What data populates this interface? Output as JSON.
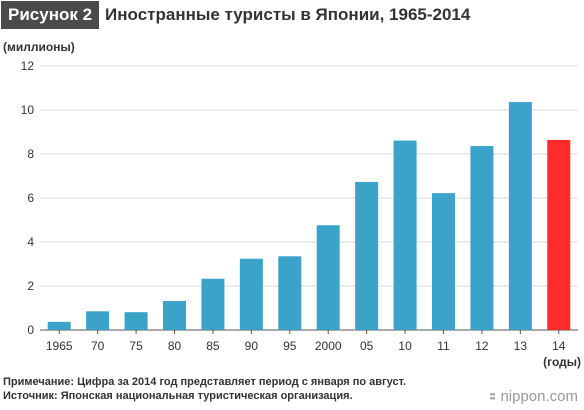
{
  "header": {
    "figure_label": "Рисунок 2",
    "title": "Иностранные туристы в Японии, 1965-2014"
  },
  "chart_data": {
    "type": "bar",
    "ylabel": "(миллионы)",
    "xlabel": "(годы)",
    "ylim": [
      0,
      12
    ],
    "yticks": [
      0,
      2,
      4,
      6,
      8,
      10,
      12
    ],
    "grid": true,
    "categories": [
      "1965",
      "70",
      "75",
      "80",
      "85",
      "90",
      "95",
      "2000",
      "05",
      "10",
      "11",
      "12",
      "13",
      "14"
    ],
    "values": [
      0.37,
      0.85,
      0.81,
      1.32,
      2.33,
      3.24,
      3.35,
      4.76,
      6.73,
      8.61,
      6.22,
      8.36,
      10.36,
      8.64
    ],
    "colors": {
      "bar": "#3aa3c7",
      "highlight": "#ff2a2a",
      "grid": "#d9d9d9",
      "axis": "#555555"
    },
    "highlight_index": 13
  },
  "notes": {
    "line1": "Примечание: Цифра за 2014 год представляет период с января по август.",
    "line2": "Источник: Японская национальная туристическая организация."
  },
  "brand": {
    "text": "nippon.com"
  }
}
